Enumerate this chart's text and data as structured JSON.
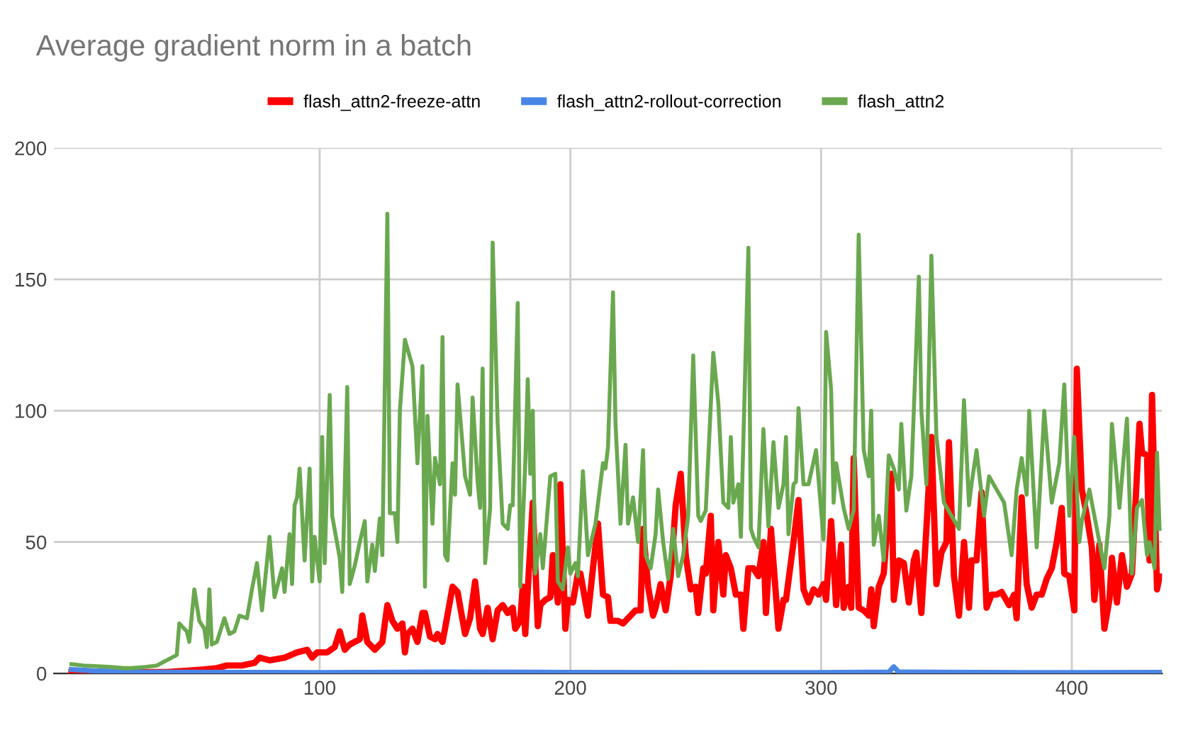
{
  "chart_data": {
    "type": "line",
    "title": "Average gradient norm in a batch",
    "xlim": [
      -6,
      436
    ],
    "xticks": [
      100,
      200,
      300,
      400
    ],
    "ylim": [
      0,
      200
    ],
    "yticks": [
      0,
      50,
      100,
      150,
      200
    ],
    "grid": true,
    "legend": "top",
    "marker": "none",
    "line_style": "solid",
    "series": [
      {
        "name": "flash_attn2-freeze-attn",
        "color": "#ff0000",
        "x": [
          1,
          39,
          54,
          59,
          63,
          69,
          74,
          76,
          80,
          86,
          91,
          95,
          97,
          99,
          103,
          106,
          108,
          110,
          112,
          116,
          117,
          119,
          122,
          125,
          127,
          129,
          131,
          133,
          134,
          135,
          137,
          139,
          141,
          142,
          144,
          146,
          147,
          149,
          150,
          153,
          155,
          158,
          160,
          162,
          164,
          165,
          167,
          169,
          171,
          173,
          175,
          177,
          178,
          180,
          181,
          182,
          185,
          187,
          188,
          190,
          192,
          193,
          195,
          196,
          198,
          199,
          201,
          203,
          204,
          207,
          209,
          211,
          213,
          215,
          216,
          219,
          221,
          223,
          226,
          228,
          229,
          231,
          233,
          234,
          236,
          238,
          240,
          242,
          244,
          246,
          248,
          250,
          251,
          253,
          254,
          256,
          257,
          259,
          261,
          262,
          264,
          266,
          268,
          269,
          271,
          273,
          275,
          277,
          278,
          280,
          283,
          285,
          286,
          289,
          291,
          293,
          295,
          297,
          299,
          301,
          302,
          304,
          306,
          308,
          309,
          311,
          312,
          313,
          315,
          317,
          319,
          320,
          321,
          323,
          325,
          328,
          329,
          331,
          333,
          335,
          337,
          338,
          340,
          342,
          344,
          346,
          348,
          350,
          351,
          353,
          355,
          357,
          359,
          360,
          362,
          364,
          366,
          368,
          370,
          372,
          375,
          377,
          378,
          380,
          382,
          384,
          386,
          388,
          390,
          392,
          394,
          396,
          397,
          399,
          401,
          402,
          404,
          406,
          408,
          409,
          411,
          413,
          415,
          416,
          418,
          420,
          422,
          424,
          427,
          428,
          430,
          431,
          432,
          434,
          435
        ],
        "values": [
          0.5,
          0.5,
          1.5,
          2,
          3,
          3,
          4,
          6,
          5,
          6,
          8,
          9,
          6,
          8,
          8,
          10,
          16,
          9,
          11,
          13,
          22,
          12,
          9,
          12,
          26,
          20,
          17,
          19,
          8,
          15,
          17,
          12,
          23,
          23,
          14,
          13,
          15,
          12,
          17,
          33,
          31,
          15,
          21,
          35,
          17,
          15,
          25,
          13,
          24,
          26,
          23,
          25,
          17,
          20,
          33,
          15,
          65,
          18,
          26,
          28,
          29,
          45,
          27,
          72,
          17,
          28,
          27,
          38,
          38,
          22,
          40,
          57,
          30,
          29,
          20,
          20,
          19,
          21,
          24,
          24,
          55,
          33,
          22,
          25,
          34,
          24,
          37,
          64,
          76,
          45,
          32,
          33,
          23,
          40,
          38,
          60,
          24,
          50,
          30,
          45,
          40,
          30,
          30,
          17,
          40,
          40,
          37,
          50,
          23,
          55,
          17,
          28,
          28,
          50,
          66,
          32,
          27,
          32,
          30,
          34,
          28,
          58,
          26,
          49,
          25,
          33,
          25,
          82,
          25,
          24,
          22,
          32,
          18,
          33,
          38,
          76,
          28,
          43,
          42,
          27,
          43,
          46,
          23,
          55,
          90,
          34,
          46,
          50,
          88,
          37,
          22,
          50,
          25,
          43,
          43,
          69,
          25,
          30,
          30,
          31,
          26,
          30,
          21,
          67,
          34,
          25,
          30,
          30,
          36,
          40,
          50,
          63,
          38,
          37,
          24,
          116,
          70,
          60,
          48,
          28,
          49,
          17,
          28,
          44,
          27,
          45,
          33,
          38,
          95,
          84,
          83,
          43,
          106,
          32,
          37
        ]
      },
      {
        "name": "flash_attn2-rollout-correction",
        "color": "#4a86e8",
        "x": [
          1,
          10,
          30,
          100,
          150,
          200,
          250,
          300,
          327,
          329,
          331,
          380,
          435
        ],
        "values": [
          1.5,
          1,
          0.5,
          0.3,
          0.5,
          0.4,
          0.3,
          0.3,
          0.5,
          2.5,
          0.5,
          0.3,
          0.4
        ]
      },
      {
        "name": "flash_attn2",
        "color": "#6aa84f",
        "x": [
          1,
          6,
          16,
          22,
          25,
          31,
          35,
          39,
          43,
          44,
          47,
          48,
          50,
          52,
          54,
          55,
          56,
          57,
          59,
          62,
          64,
          66,
          68,
          71,
          73,
          75,
          77,
          80,
          82,
          85,
          86,
          88,
          89,
          90,
          91,
          92,
          94,
          96,
          97,
          98,
          100,
          101,
          102,
          104,
          105,
          108,
          109,
          111,
          112,
          114,
          116,
          118,
          119,
          121,
          122,
          124,
          125,
          127,
          128,
          130,
          131,
          132,
          134,
          137,
          139,
          141,
          142,
          143,
          145,
          146,
          148,
          149,
          150,
          151,
          153,
          154,
          155,
          158,
          160,
          161,
          163,
          164,
          165,
          166,
          168,
          169,
          171,
          173,
          175,
          176,
          177,
          179,
          180,
          182,
          183,
          184,
          185,
          186,
          188,
          189,
          192,
          194,
          195,
          197,
          199,
          200,
          202,
          203,
          205,
          207,
          210,
          213,
          214,
          215,
          217,
          218,
          220,
          222,
          223,
          225,
          227,
          229,
          230,
          232,
          234,
          235,
          237,
          239,
          241,
          243,
          245,
          247,
          249,
          251,
          252,
          254,
          257,
          259,
          261,
          263,
          264,
          265,
          267,
          268,
          271,
          272,
          273,
          275,
          277,
          279,
          281,
          283,
          285,
          286,
          287,
          289,
          290,
          291,
          293,
          295,
          298,
          301,
          302,
          304,
          305,
          306,
          309,
          311,
          313,
          315,
          317,
          319,
          320,
          321,
          323,
          325,
          327,
          329,
          331,
          332,
          334,
          336,
          339,
          340,
          342,
          344,
          346,
          349,
          352,
          355,
          357,
          359,
          360,
          362,
          365,
          367,
          370,
          373,
          376,
          378,
          380,
          382,
          383,
          386,
          388,
          389,
          392,
          395,
          397,
          399,
          401,
          403,
          404,
          407,
          410,
          413,
          415,
          416,
          419,
          422,
          424,
          426,
          428,
          430,
          431,
          433,
          434,
          435
        ],
        "values": [
          3.5,
          3,
          2.5,
          2,
          2,
          2.5,
          3,
          5,
          7,
          19,
          16,
          12,
          32,
          20,
          17,
          10,
          32,
          11,
          12,
          21,
          15,
          16,
          22,
          21,
          32,
          42,
          24,
          52,
          29,
          40,
          31,
          53,
          34,
          64,
          67,
          78,
          43,
          78,
          35,
          52,
          35,
          90,
          42,
          106,
          60,
          44,
          31,
          109,
          34,
          41,
          50,
          58,
          35,
          49,
          39,
          59,
          45,
          175,
          61,
          61,
          50,
          100,
          127,
          117,
          80,
          117,
          33,
          98,
          57,
          82,
          72,
          128,
          45,
          43,
          80,
          68,
          110,
          75,
          68,
          105,
          73,
          63,
          116,
          42,
          63,
          164,
          95,
          57,
          55,
          64,
          64,
          141,
          33,
          80,
          112,
          76,
          100,
          38,
          53,
          40,
          75,
          76,
          35,
          32,
          48,
          38,
          42,
          37,
          77,
          45,
          57,
          80,
          78,
          86,
          145,
          95,
          57,
          87,
          57,
          67,
          50,
          85,
          45,
          40,
          53,
          70,
          50,
          36,
          55,
          37,
          45,
          60,
          121,
          60,
          58,
          62,
          122,
          103,
          65,
          63,
          90,
          65,
          72,
          52,
          162,
          55,
          52,
          48,
          93,
          56,
          88,
          63,
          72,
          90,
          53,
          72,
          73,
          101,
          72,
          72,
          85,
          51,
          130,
          108,
          65,
          80,
          63,
          55,
          62,
          167,
          85,
          75,
          100,
          49,
          60,
          43,
          83,
          78,
          70,
          95,
          62,
          75,
          151,
          100,
          72,
          159,
          90,
          65,
          60,
          55,
          104,
          64,
          72,
          85,
          60,
          75,
          70,
          65,
          45,
          70,
          82,
          68,
          100,
          48,
          82,
          100,
          65,
          80,
          110,
          60,
          90,
          50,
          58,
          70,
          55,
          40,
          60,
          95,
          63,
          97,
          38,
          63,
          66,
          45,
          50,
          40,
          84,
          55
        ]
      }
    ]
  }
}
